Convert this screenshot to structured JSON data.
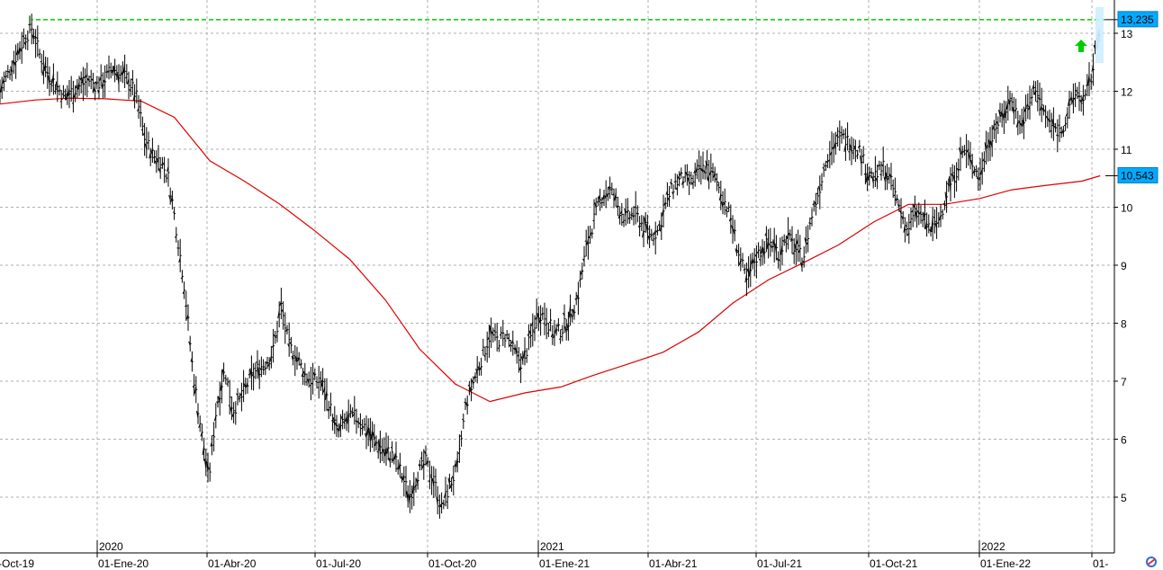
{
  "chart_data": {
    "type": "line",
    "ylim": [
      4.1,
      13.9
    ],
    "y_ticks": [
      5,
      6,
      7,
      8,
      9,
      10,
      11,
      12,
      13
    ],
    "x_tick_labels": [
      "-Oct-19",
      "01-Ene-20",
      "01-Abr-20",
      "01-Jul-20",
      "01-Oct-20",
      "01-Ene-21",
      "01-Abr-21",
      "01-Jul-21",
      "01-Oct-21",
      "01-Ene-22",
      "01-"
    ],
    "year_labels": [
      "2020",
      "2021",
      "2022"
    ],
    "grid": true,
    "series": [
      {
        "style": "bars",
        "color": "#000000",
        "values": [
          [
            "2019-10-01",
            12.0
          ],
          [
            "2019-10-08",
            12.3
          ],
          [
            "2019-10-15",
            12.6
          ],
          [
            "2019-10-22",
            12.9
          ],
          [
            "2019-10-29",
            13.1
          ],
          [
            "2019-11-05",
            12.6
          ],
          [
            "2019-11-12",
            12.3
          ],
          [
            "2019-11-19",
            12.1
          ],
          [
            "2019-11-26",
            11.9
          ],
          [
            "2019-12-03",
            12.0
          ],
          [
            "2019-12-10",
            12.1
          ],
          [
            "2019-12-17",
            12.2
          ],
          [
            "2019-12-24",
            12.1
          ],
          [
            "2019-12-31",
            12.2
          ],
          [
            "2020-01-07",
            12.4
          ],
          [
            "2020-01-14",
            12.3
          ],
          [
            "2020-01-21",
            12.2
          ],
          [
            "2020-01-28",
            11.9
          ],
          [
            "2020-02-04",
            11.2
          ],
          [
            "2020-02-11",
            10.9
          ],
          [
            "2020-02-18",
            10.8
          ],
          [
            "2020-02-25",
            10.5
          ],
          [
            "2020-03-03",
            9.6
          ],
          [
            "2020-03-10",
            8.6
          ],
          [
            "2020-03-17",
            7.2
          ],
          [
            "2020-03-24",
            6.2
          ],
          [
            "2020-03-31",
            5.3
          ],
          [
            "2020-04-07",
            6.6
          ],
          [
            "2020-04-14",
            7.2
          ],
          [
            "2020-04-21",
            6.5
          ],
          [
            "2020-04-28",
            6.7
          ],
          [
            "2020-05-05",
            7.0
          ],
          [
            "2020-05-12",
            7.2
          ],
          [
            "2020-05-19",
            7.3
          ],
          [
            "2020-05-26",
            7.5
          ],
          [
            "2020-06-02",
            8.3
          ],
          [
            "2020-06-09",
            7.6
          ],
          [
            "2020-06-16",
            7.4
          ],
          [
            "2020-06-23",
            7.1
          ],
          [
            "2020-06-30",
            7.0
          ],
          [
            "2020-07-07",
            7.0
          ],
          [
            "2020-07-14",
            6.6
          ],
          [
            "2020-07-21",
            6.1
          ],
          [
            "2020-07-28",
            6.3
          ],
          [
            "2020-08-04",
            6.4
          ],
          [
            "2020-08-11",
            6.3
          ],
          [
            "2020-08-18",
            6.1
          ],
          [
            "2020-08-25",
            5.9
          ],
          [
            "2020-09-01",
            5.8
          ],
          [
            "2020-09-08",
            5.7
          ],
          [
            "2020-09-15",
            5.4
          ],
          [
            "2020-09-22",
            5.0
          ],
          [
            "2020-09-29",
            5.4
          ],
          [
            "2020-10-06",
            5.6
          ],
          [
            "2020-10-13",
            5.3
          ],
          [
            "2020-10-20",
            4.8
          ],
          [
            "2020-10-27",
            5.2
          ],
          [
            "2020-11-03",
            5.5
          ],
          [
            "2020-11-10",
            6.6
          ],
          [
            "2020-11-17",
            7.0
          ],
          [
            "2020-11-24",
            7.4
          ],
          [
            "2020-12-01",
            7.8
          ],
          [
            "2020-12-08",
            7.7
          ],
          [
            "2020-12-15",
            7.8
          ],
          [
            "2020-12-22",
            7.5
          ],
          [
            "2020-12-29",
            7.3
          ],
          [
            "2021-01-05",
            7.7
          ],
          [
            "2021-01-12",
            8.2
          ],
          [
            "2021-01-19",
            8.1
          ],
          [
            "2021-01-26",
            7.8
          ],
          [
            "2021-02-02",
            7.9
          ],
          [
            "2021-02-09",
            8.1
          ],
          [
            "2021-02-16",
            8.5
          ],
          [
            "2021-02-23",
            9.3
          ],
          [
            "2021-03-02",
            9.8
          ],
          [
            "2021-03-09",
            10.2
          ],
          [
            "2021-03-16",
            10.3
          ],
          [
            "2021-03-23",
            10.0
          ],
          [
            "2021-03-30",
            9.8
          ],
          [
            "2021-04-06",
            9.9
          ],
          [
            "2021-04-13",
            9.7
          ],
          [
            "2021-04-20",
            9.5
          ],
          [
            "2021-04-27",
            9.6
          ],
          [
            "2021-05-04",
            10.1
          ],
          [
            "2021-05-11",
            10.4
          ],
          [
            "2021-05-18",
            10.5
          ],
          [
            "2021-05-25",
            10.4
          ],
          [
            "2021-06-01",
            10.6
          ],
          [
            "2021-06-08",
            10.7
          ],
          [
            "2021-06-15",
            10.5
          ],
          [
            "2021-06-22",
            10.2
          ],
          [
            "2021-06-29",
            9.8
          ],
          [
            "2021-07-06",
            9.2
          ],
          [
            "2021-07-13",
            8.7
          ],
          [
            "2021-07-20",
            9.1
          ],
          [
            "2021-07-27",
            9.3
          ],
          [
            "2021-08-03",
            9.4
          ],
          [
            "2021-08-10",
            9.2
          ],
          [
            "2021-08-17",
            9.5
          ],
          [
            "2021-08-24",
            9.3
          ],
          [
            "2021-08-31",
            9.1
          ],
          [
            "2021-09-07",
            9.8
          ],
          [
            "2021-09-14",
            10.3
          ],
          [
            "2021-09-21",
            10.9
          ],
          [
            "2021-09-28",
            11.1
          ],
          [
            "2021-10-05",
            11.2
          ],
          [
            "2021-10-12",
            11.1
          ],
          [
            "2021-10-19",
            11.0
          ],
          [
            "2021-10-26",
            10.6
          ],
          [
            "2021-11-02",
            10.5
          ],
          [
            "2021-11-09",
            10.7
          ],
          [
            "2021-11-16",
            10.4
          ],
          [
            "2021-11-23",
            10.0
          ],
          [
            "2021-11-30",
            9.6
          ],
          [
            "2021-12-07",
            9.9
          ],
          [
            "2021-12-14",
            9.8
          ],
          [
            "2021-12-21",
            9.6
          ],
          [
            "2021-12-28",
            9.8
          ],
          [
            "2022-01-04",
            10.3
          ],
          [
            "2022-01-11",
            10.6
          ],
          [
            "2022-01-18",
            11.0
          ],
          [
            "2022-01-25",
            10.8
          ],
          [
            "2022-02-01",
            10.5
          ],
          [
            "2022-02-08",
            11.1
          ],
          [
            "2022-02-15",
            11.4
          ],
          [
            "2022-02-22",
            11.6
          ],
          [
            "2022-03-01",
            11.9
          ],
          [
            "2022-03-08",
            11.4
          ],
          [
            "2022-03-15",
            11.7
          ],
          [
            "2022-03-22",
            12.1
          ],
          [
            "2022-03-29",
            11.6
          ],
          [
            "2022-04-05",
            11.4
          ],
          [
            "2022-04-12",
            11.3
          ],
          [
            "2022-04-19",
            11.6
          ],
          [
            "2022-04-26",
            12.0
          ],
          [
            "2022-05-03",
            11.8
          ],
          [
            "2022-05-10",
            12.3
          ],
          [
            "2022-05-17",
            13.2
          ]
        ]
      },
      {
        "style": "line",
        "color": "#dd0000",
        "values": [
          [
            "2019-10-01",
            11.78
          ],
          [
            "2019-11-01",
            11.85
          ],
          [
            "2019-12-01",
            11.88
          ],
          [
            "2020-01-01",
            11.87
          ],
          [
            "2020-02-01",
            11.83
          ],
          [
            "2020-03-01",
            11.55
          ],
          [
            "2020-04-01",
            10.8
          ],
          [
            "2020-05-01",
            10.45
          ],
          [
            "2020-06-01",
            10.05
          ],
          [
            "2020-07-01",
            9.6
          ],
          [
            "2020-08-01",
            9.1
          ],
          [
            "2020-09-01",
            8.4
          ],
          [
            "2020-10-01",
            7.55
          ],
          [
            "2020-11-01",
            6.95
          ],
          [
            "2020-12-01",
            6.65
          ],
          [
            "2021-01-01",
            6.8
          ],
          [
            "2021-02-01",
            6.9
          ],
          [
            "2021-03-01",
            7.1
          ],
          [
            "2021-04-01",
            7.3
          ],
          [
            "2021-05-01",
            7.5
          ],
          [
            "2021-06-01",
            7.85
          ],
          [
            "2021-07-01",
            8.35
          ],
          [
            "2021-08-01",
            8.75
          ],
          [
            "2021-09-01",
            9.05
          ],
          [
            "2021-10-01",
            9.35
          ],
          [
            "2021-11-01",
            9.75
          ],
          [
            "2021-12-01",
            10.05
          ],
          [
            "2022-01-01",
            10.05
          ],
          [
            "2022-02-01",
            10.15
          ],
          [
            "2022-03-01",
            10.3
          ],
          [
            "2022-04-01",
            10.38
          ],
          [
            "2022-05-01",
            10.45
          ],
          [
            "2022-05-17",
            10.543
          ]
        ]
      }
    ],
    "reference_line": {
      "value": 13.235,
      "color": "#00cc00",
      "style": "dashed"
    },
    "price_badges": [
      {
        "value": 13.235,
        "label": "13,235",
        "color": "#00aaff"
      },
      {
        "value": 10.543,
        "label": "10,543",
        "color": "#00aaff"
      }
    ],
    "arrow_marker": {
      "date": "2022-05-10",
      "value": 12.8,
      "color": "#00cc00",
      "direction": "up"
    }
  }
}
